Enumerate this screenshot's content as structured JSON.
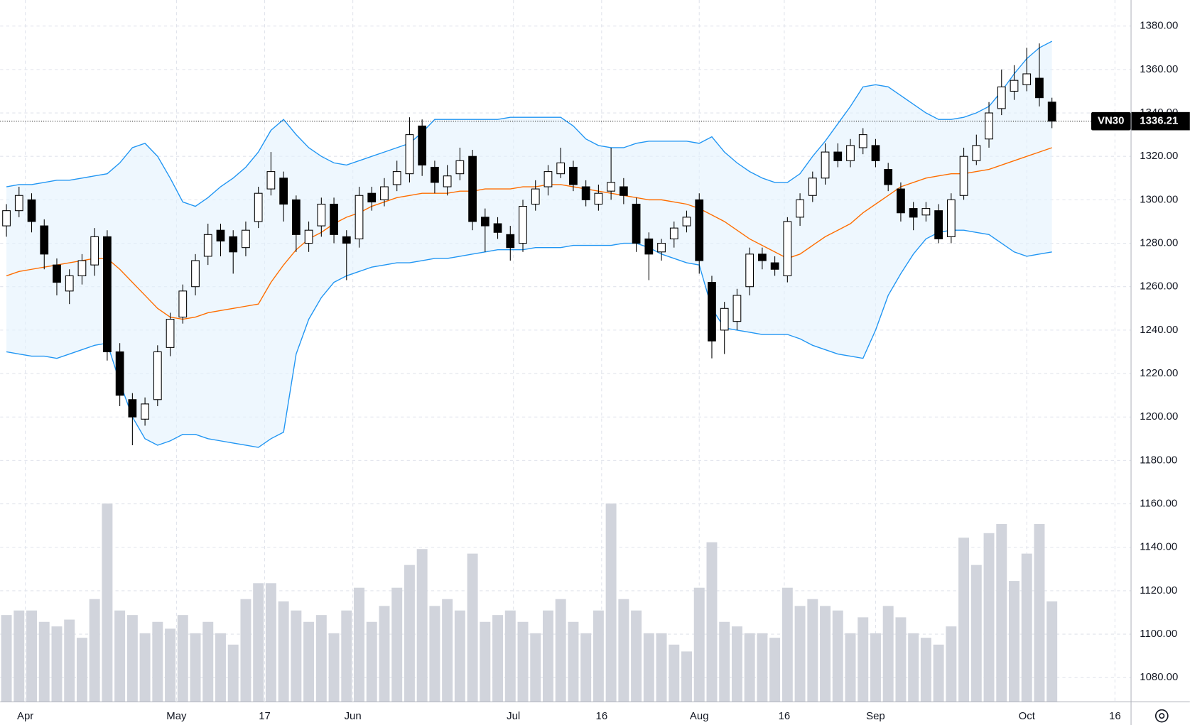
{
  "chart_data": {
    "type": "candlestick",
    "symbol": "VN30",
    "last_price": 1336.21,
    "grid": true,
    "up_color": "#ffffff",
    "down_color": "#000000",
    "xlim": [
      0,
      179.5
    ],
    "xticks": [
      {
        "value": 4,
        "label": "Apr"
      },
      {
        "value": 28,
        "label": "May"
      },
      {
        "value": 42,
        "label": "17"
      },
      {
        "value": 56,
        "label": "Jun"
      },
      {
        "value": 81.5,
        "label": "Jul"
      },
      {
        "value": 95.5,
        "label": "16"
      },
      {
        "value": 111,
        "label": "Aug"
      },
      {
        "value": 124.5,
        "label": "16"
      },
      {
        "value": 139,
        "label": "Sep"
      },
      {
        "value": 163,
        "label": "Oct"
      },
      {
        "value": 177,
        "label": "16"
      }
    ],
    "ylim": [
      1069,
      1392
    ],
    "yticks": [
      {
        "value": 1080,
        "label": "1080.00"
      },
      {
        "value": 1100,
        "label": "1100.00"
      },
      {
        "value": 1120,
        "label": "1120.00"
      },
      {
        "value": 1140,
        "label": "1140.00"
      },
      {
        "value": 1160,
        "label": "1160.00"
      },
      {
        "value": 1180,
        "label": "1180.00"
      },
      {
        "value": 1200,
        "label": "1200.00"
      },
      {
        "value": 1220,
        "label": "1220.00"
      },
      {
        "value": 1240,
        "label": "1240.00"
      },
      {
        "value": 1260,
        "label": "1260.00"
      },
      {
        "value": 1280,
        "label": "1280.00"
      },
      {
        "value": 1300,
        "label": "1300.00"
      },
      {
        "value": 1320,
        "label": "1320.00"
      },
      {
        "value": 1340,
        "label": "1340.00"
      },
      {
        "value": 1360,
        "label": "1360.00"
      },
      {
        "value": 1380,
        "label": "1380.00"
      }
    ],
    "y2lim": [
      0,
      100
    ],
    "x": [
      1,
      3,
      5,
      7,
      9,
      11,
      13,
      15,
      17,
      19,
      21,
      23,
      25,
      27,
      29,
      31,
      33,
      35,
      37,
      39,
      41,
      43,
      45,
      47,
      49,
      51,
      53,
      55,
      57,
      59,
      61,
      63,
      65,
      67,
      69,
      71,
      73,
      75,
      77,
      79,
      81,
      83,
      85,
      87,
      89,
      91,
      93,
      95,
      97,
      99,
      101,
      103,
      105,
      107,
      109,
      111,
      113,
      115,
      117,
      119,
      121,
      123,
      125,
      127,
      129,
      131,
      133,
      135,
      137,
      139,
      141,
      143,
      145,
      147,
      149,
      151,
      153,
      155,
      157,
      159,
      161,
      163,
      165,
      167
    ],
    "open": [
      1288,
      1295,
      1300,
      1288,
      1270,
      1258,
      1265,
      1270,
      1283,
      1230,
      1208,
      1199,
      1208,
      1232,
      1246,
      1260,
      1274,
      1286,
      1283,
      1278,
      1290,
      1305,
      1310,
      1300,
      1280,
      1288,
      1298,
      1283,
      1282,
      1303,
      1300,
      1307,
      1312,
      1334,
      1315,
      1306,
      1312,
      1320,
      1292,
      1289,
      1284,
      1280,
      1298,
      1306,
      1312,
      1315,
      1306,
      1298,
      1304,
      1306,
      1298,
      1282,
      1276,
      1282,
      1288,
      1300,
      1262,
      1240,
      1244,
      1260,
      1275,
      1271,
      1265,
      1292,
      1302,
      1310,
      1322,
      1318,
      1324,
      1325,
      1314,
      1305,
      1296,
      1293,
      1295,
      1283,
      1302,
      1318,
      1328,
      1342,
      1350,
      1353,
      1356,
      1345
    ],
    "high": [
      1298,
      1306,
      1303,
      1291,
      1273,
      1268,
      1275,
      1287,
      1286,
      1234,
      1211,
      1209,
      1233,
      1248,
      1261,
      1275,
      1289,
      1289,
      1286,
      1290,
      1306,
      1322,
      1313,
      1302,
      1290,
      1301,
      1301,
      1286,
      1306,
      1306,
      1310,
      1318,
      1338,
      1337,
      1318,
      1316,
      1324,
      1323,
      1296,
      1292,
      1288,
      1300,
      1309,
      1316,
      1324,
      1318,
      1309,
      1307,
      1324,
      1310,
      1301,
      1285,
      1282,
      1290,
      1295,
      1303,
      1265,
      1253,
      1259,
      1278,
      1278,
      1274,
      1292,
      1303,
      1313,
      1326,
      1326,
      1328,
      1333,
      1328,
      1317,
      1308,
      1299,
      1299,
      1298,
      1303,
      1324,
      1330,
      1345,
      1360,
      1362,
      1370,
      1372,
      1347
    ],
    "low": [
      1283,
      1292,
      1285,
      1268,
      1256,
      1252,
      1261,
      1265,
      1226,
      1205,
      1187,
      1196,
      1205,
      1228,
      1243,
      1256,
      1270,
      1274,
      1266,
      1274,
      1287,
      1302,
      1290,
      1276,
      1276,
      1283,
      1280,
      1263,
      1278,
      1295,
      1297,
      1304,
      1308,
      1311,
      1303,
      1302,
      1309,
      1286,
      1276,
      1282,
      1272,
      1276,
      1295,
      1302,
      1310,
      1304,
      1297,
      1295,
      1300,
      1298,
      1276,
      1263,
      1272,
      1278,
      1285,
      1266,
      1227,
      1229,
      1240,
      1256,
      1268,
      1265,
      1262,
      1288,
      1299,
      1307,
      1315,
      1315,
      1321,
      1315,
      1304,
      1290,
      1286,
      1290,
      1280,
      1280,
      1300,
      1316,
      1324,
      1339,
      1346,
      1350,
      1343,
      1333
    ],
    "close": [
      1295,
      1302,
      1290,
      1275,
      1262,
      1265,
      1272,
      1283,
      1230,
      1210,
      1200,
      1206,
      1230,
      1245,
      1258,
      1272,
      1284,
      1281,
      1276,
      1286,
      1303,
      1313,
      1298,
      1284,
      1286,
      1298,
      1284,
      1280,
      1302,
      1299,
      1306,
      1313,
      1330,
      1316,
      1308,
      1311,
      1318,
      1290,
      1288,
      1285,
      1278,
      1297,
      1305,
      1313,
      1317,
      1307,
      1300,
      1303,
      1308,
      1302,
      1280,
      1275,
      1280,
      1287,
      1292,
      1272,
      1235,
      1250,
      1256,
      1275,
      1272,
      1268,
      1290,
      1300,
      1310,
      1322,
      1318,
      1325,
      1330,
      1318,
      1307,
      1294,
      1292,
      1296,
      1282,
      1300,
      1320,
      1325,
      1340,
      1352,
      1355,
      1358,
      1347,
      1336.21
    ],
    "volume": {
      "color": "#d1d4dc",
      "axis": "y2",
      "values": [
        38,
        40,
        40,
        35,
        33,
        36,
        28,
        45,
        87,
        40,
        38,
        30,
        35,
        32,
        38,
        30,
        35,
        30,
        25,
        45,
        52,
        52,
        44,
        40,
        35,
        38,
        30,
        40,
        50,
        35,
        42,
        50,
        60,
        67,
        42,
        45,
        40,
        65,
        35,
        38,
        40,
        35,
        30,
        40,
        45,
        35,
        30,
        40,
        87,
        45,
        40,
        30,
        30,
        25,
        22,
        50,
        70,
        35,
        33,
        30,
        30,
        28,
        50,
        42,
        45,
        42,
        40,
        30,
        37,
        30,
        42,
        37,
        30,
        28,
        25,
        33,
        72,
        60,
        74,
        78,
        53,
        65,
        78,
        44
      ]
    },
    "band_fill": "#e3f2fd",
    "series": [
      {
        "color": "#2196f3",
        "values": [
          1306,
          1307,
          1307,
          1308,
          1309,
          1309,
          1310,
          1311,
          1312,
          1317,
          1324,
          1326,
          1320,
          1310,
          1299,
          1297,
          1301,
          1306,
          1310,
          1315,
          1322,
          1332,
          1337,
          1330,
          1324,
          1320,
          1317,
          1316,
          1318,
          1320,
          1322,
          1324,
          1326,
          1331,
          1337,
          1337,
          1337,
          1337,
          1337,
          1337,
          1338,
          1338,
          1338,
          1338,
          1338,
          1334,
          1328,
          1325,
          1324,
          1324,
          1326,
          1327,
          1327,
          1327,
          1327,
          1326,
          1329,
          1322,
          1317,
          1313,
          1310,
          1308,
          1308,
          1312,
          1320,
          1327,
          1335,
          1343,
          1352,
          1353,
          1352,
          1348,
          1344,
          1340,
          1337,
          1337,
          1338,
          1340,
          1343,
          1350,
          1358,
          1365,
          1370,
          1373
        ]
      },
      {
        "color": "#ff6d00",
        "values": [
          1265,
          1267,
          1268,
          1269,
          1270,
          1271,
          1272,
          1273,
          1273,
          1268,
          1262,
          1256,
          1250,
          1246,
          1245,
          1246,
          1248,
          1249,
          1250,
          1251,
          1252,
          1262,
          1270,
          1277,
          1282,
          1285,
          1289,
          1292,
          1294,
          1297,
          1299,
          1301,
          1302,
          1303,
          1303,
          1303,
          1304,
          1304,
          1305,
          1305,
          1305,
          1306,
          1306,
          1307,
          1307,
          1306,
          1305,
          1304,
          1303,
          1302,
          1301,
          1300,
          1300,
          1299,
          1298,
          1296,
          1293,
          1290,
          1286,
          1282,
          1279,
          1276,
          1273,
          1275,
          1279,
          1283,
          1286,
          1289,
          1294,
          1298,
          1302,
          1306,
          1308,
          1310,
          1311,
          1312,
          1312,
          1313,
          1314,
          1316,
          1318,
          1320,
          1322,
          1324
        ]
      },
      {
        "color": "#2196f3",
        "values": [
          1230,
          1229,
          1228,
          1228,
          1227,
          1229,
          1231,
          1233,
          1234,
          1216,
          1200,
          1190,
          1187,
          1189,
          1192,
          1192,
          1190,
          1189,
          1188,
          1187,
          1186,
          1190,
          1193,
          1229,
          1245,
          1255,
          1262,
          1265,
          1267,
          1269,
          1270,
          1271,
          1271,
          1272,
          1273,
          1273,
          1274,
          1275,
          1276,
          1277,
          1277,
          1277,
          1278,
          1278,
          1278,
          1279,
          1279,
          1279,
          1279,
          1280,
          1280,
          1278,
          1275,
          1273,
          1271,
          1270,
          1250,
          1241,
          1240,
          1239,
          1238,
          1238,
          1238,
          1236,
          1233,
          1231,
          1229,
          1228,
          1227,
          1240,
          1256,
          1266,
          1275,
          1282,
          1285,
          1286,
          1286,
          1285,
          1284,
          1280,
          1276,
          1274,
          1275,
          1276
        ]
      }
    ]
  }
}
